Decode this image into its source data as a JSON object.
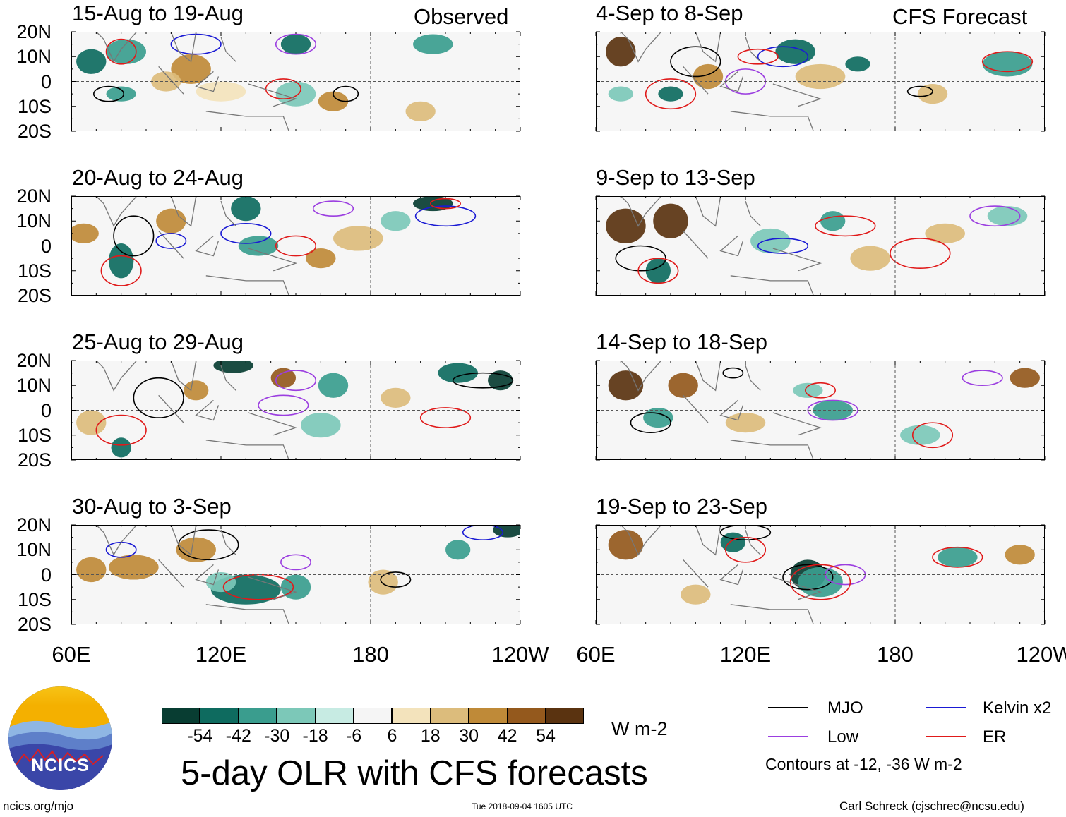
{
  "header": {
    "observed_label": "Observed",
    "forecast_label": "CFS Forecast"
  },
  "lat_labels": [
    "20N",
    "10N",
    "0",
    "10S",
    "20S"
  ],
  "lon_labels": [
    "60E",
    "120E",
    "180",
    "120W"
  ],
  "chart_data": [
    {
      "type": "heatmap",
      "column": "Observed",
      "title": "15-Aug to 19-Aug"
    },
    {
      "type": "heatmap",
      "column": "Observed",
      "title": "20-Aug to 24-Aug"
    },
    {
      "type": "heatmap",
      "column": "Observed",
      "title": "25-Aug to 29-Aug"
    },
    {
      "type": "heatmap",
      "column": "Observed",
      "title": "30-Aug to 3-Sep"
    },
    {
      "type": "heatmap",
      "column": "CFS Forecast",
      "title": "4-Sep to 8-Sep"
    },
    {
      "type": "heatmap",
      "column": "CFS Forecast",
      "title": "9-Sep to 13-Sep"
    },
    {
      "type": "heatmap",
      "column": "CFS Forecast",
      "title": "14-Sep to 18-Sep"
    },
    {
      "type": "heatmap",
      "column": "CFS Forecast",
      "title": "19-Sep to 23-Sep"
    }
  ],
  "axes": {
    "x_range": [
      60,
      240
    ],
    "y_range": [
      -20,
      20
    ],
    "x_ticks": [
      60,
      120,
      180,
      240
    ],
    "y_ticks": [
      20,
      10,
      0,
      -10,
      -20
    ]
  },
  "colorbar": {
    "colors": [
      "#083d32",
      "#0e6b5f",
      "#3a9d8e",
      "#7cc8b8",
      "#c7ebe3",
      "#f5f5f5",
      "#f3e3bc",
      "#dcbc7c",
      "#bf8a38",
      "#94591d",
      "#5a3310"
    ],
    "tick_labels": [
      "-54",
      "-42",
      "-30",
      "-18",
      "-6",
      "6",
      "18",
      "30",
      "42",
      "54"
    ],
    "units": "W m-2"
  },
  "title": "5-day OLR with CFS forecasts",
  "legend": {
    "items": [
      {
        "label": "MJO",
        "color": "#000000"
      },
      {
        "label": "Kelvin x2",
        "color": "#1a1ad4"
      },
      {
        "label": "Low",
        "color": "#9b3ee0"
      },
      {
        "label": "ER",
        "color": "#e01a1a"
      }
    ],
    "note": "Contours at -12, -36 W m-2"
  },
  "logo_text": "NCICS",
  "footer": {
    "left": "ncics.org/mjo",
    "center": "Tue 2018-09-04 1605 UTC",
    "right": "Carl Schreck (cjschrec@ncsu.edu)"
  }
}
